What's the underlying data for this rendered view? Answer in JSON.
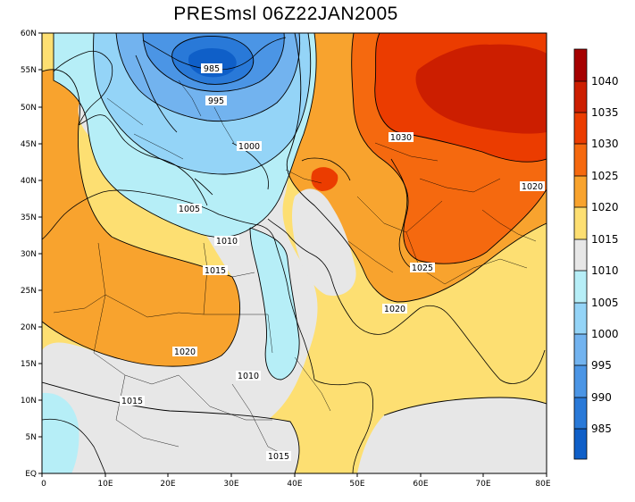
{
  "title": "PRESmsl 06Z22JAN2005",
  "map": {
    "lat_ticks": [
      "60N",
      "55N",
      "50N",
      "45N",
      "40N",
      "35N",
      "30N",
      "25N",
      "20N",
      "15N",
      "10N",
      "5N",
      "EQ"
    ],
    "lon_ticks": [
      "0",
      "10E",
      "20E",
      "30E",
      "40E",
      "50E",
      "60E",
      "70E",
      "80E"
    ],
    "lon_range_deg": [
      0,
      80
    ],
    "lat_range_deg": [
      0,
      60
    ],
    "isobar_labels": [
      "985",
      "995",
      "1000",
      "1005",
      "1010",
      "1015",
      "1020",
      "1010",
      "1015",
      "1030",
      "1020",
      "1025",
      "1020",
      "1015"
    ]
  },
  "colorbar": {
    "labels": [
      "1040",
      "1035",
      "1030",
      "1025",
      "1020",
      "1015",
      "1010",
      "1005",
      "1000",
      "995",
      "990",
      "985"
    ],
    "colors": [
      "#a60000",
      "#cc1e00",
      "#eb3c00",
      "#f5690f",
      "#f8a32e",
      "#fddf72",
      "#e7e7e7",
      "#b6eef7",
      "#94d4f7",
      "#72b3ef",
      "#4b95e5",
      "#2979d8",
      "#0f5fc8"
    ]
  },
  "palette": {
    "gray": "#e7e7e7",
    "light_yellow": "#fddf72",
    "light_orange": "#f8a32e",
    "orange": "#f5690f",
    "red_orange": "#eb3c00",
    "red": "#cc1e00",
    "dark_red": "#a60000",
    "cyan": "#b6eef7",
    "light_blue": "#94d4f7",
    "mid_blue": "#72b3ef",
    "blue": "#4b95e5"
  }
}
